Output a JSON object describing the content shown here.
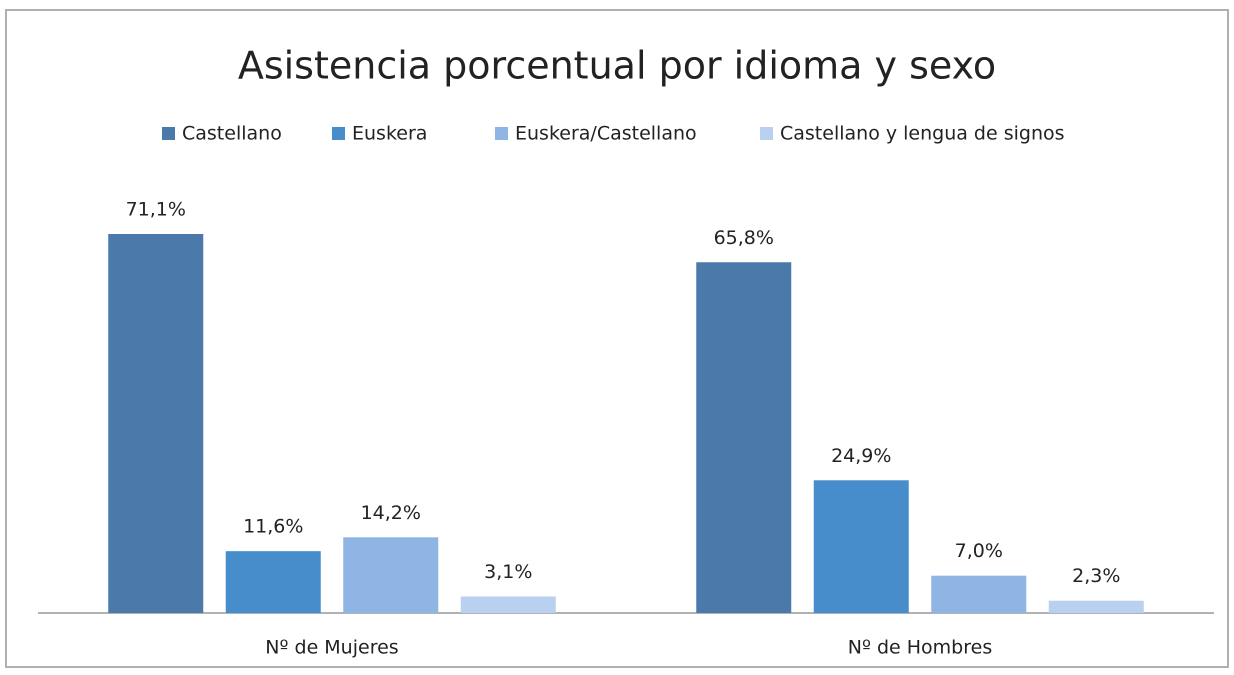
{
  "chart_data": {
    "type": "bar",
    "title": "Asistencia porcentual por idioma y sexo",
    "categories": [
      "Nº de Mujeres",
      "Nº de Hombres"
    ],
    "series": [
      {
        "name": "Castellano",
        "color": "#4a79aa",
        "values": [
          71.1,
          65.8
        ],
        "value_labels": [
          "71,1%",
          "65,8%"
        ]
      },
      {
        "name": "Euskera",
        "color": "#478dcc",
        "values": [
          11.6,
          24.9
        ],
        "value_labels": [
          "11,6%",
          "24,9%"
        ]
      },
      {
        "name": "Euskera/Castellano",
        "color": "#8eb5e3",
        "values": [
          14.2,
          7.0
        ],
        "value_labels": [
          "14,2%",
          "7,0%"
        ]
      },
      {
        "name": "Castellano y lengua de signos",
        "color": "#b9d0f1",
        "values": [
          3.1,
          2.3
        ],
        "value_labels": [
          "3,1%",
          "2,3%"
        ]
      }
    ],
    "legend": "top"
  }
}
